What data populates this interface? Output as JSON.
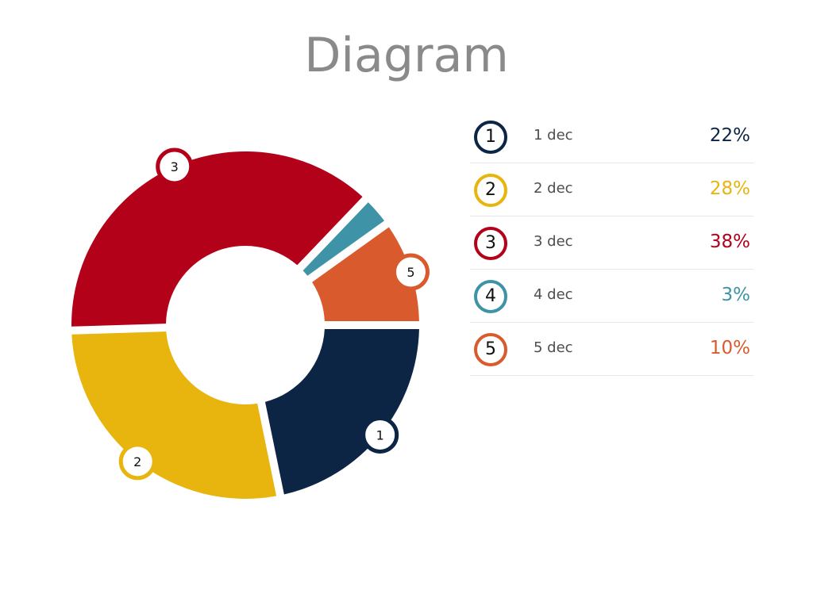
{
  "title": "Diagram",
  "colors": {
    "navy": "#0d2545",
    "gold": "#e8b50f",
    "red": "#b3011a",
    "teal": "#3e94a6",
    "orange": "#d95a2c"
  },
  "chart_data": {
    "type": "pie",
    "style": "donut",
    "title": "Diagram",
    "categories": [
      "1 dec",
      "2 dec",
      "3 dec",
      "4 dec",
      "5 dec"
    ],
    "badges": [
      "1",
      "2",
      "3",
      "4",
      "5"
    ],
    "values": [
      22,
      28,
      38,
      3,
      10
    ],
    "value_labels": [
      "22%",
      "28%",
      "38%",
      "3%",
      "10%"
    ],
    "unit": "%",
    "colors": [
      "#0d2545",
      "#e8b50f",
      "#b3011a",
      "#3e94a6",
      "#d95a2c"
    ],
    "legend_placement": "right",
    "slice_badges_shown": [
      "1",
      "2",
      "3",
      "5"
    ]
  }
}
